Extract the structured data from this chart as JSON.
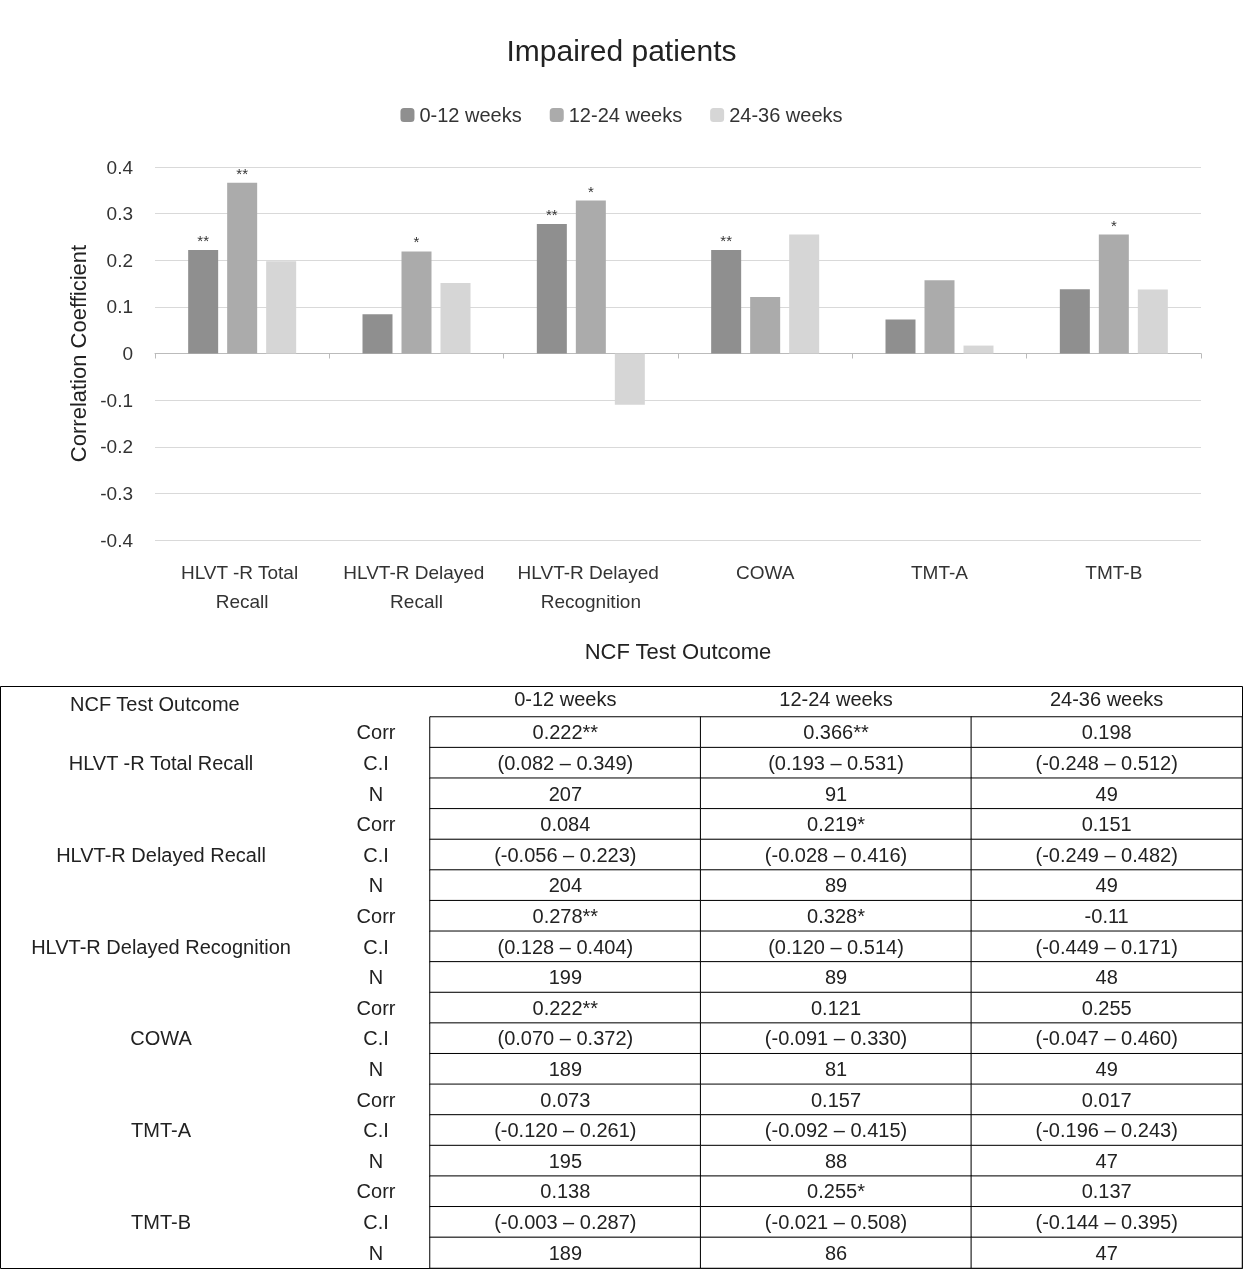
{
  "chart_data": [
    {
      "type": "bar",
      "title": "Impaired patients",
      "xlabel": "NCF Test Outcome",
      "ylabel": "Correlation Coefficient",
      "categories": [
        "HLVT -R Total Recall",
        "HLVT-R Delayed Recall",
        "HLVT-R Delayed Recognition",
        "COWA",
        "TMT-A",
        "TMT-B"
      ],
      "series": [
        {
          "name": "0-12 weeks",
          "color": "#8f8f8f",
          "values": [
            0.222,
            0.084,
            0.278,
            0.222,
            0.073,
            0.138
          ],
          "value_labels": [
            "**",
            null,
            "**",
            "**",
            null,
            null
          ]
        },
        {
          "name": "12-24 weeks",
          "color": "#ababab",
          "values": [
            0.366,
            0.219,
            0.328,
            0.121,
            0.157,
            0.255
          ],
          "value_labels": [
            "**",
            "*",
            "*",
            null,
            null,
            "*"
          ]
        },
        {
          "name": "24-36 weeks",
          "color": "#d6d6d6",
          "values": [
            0.198,
            0.151,
            -0.11,
            0.255,
            0.017,
            0.137
          ]
        }
      ],
      "ylim": [
        -0.4,
        0.4
      ],
      "yticks": [
        -0.4,
        -0.3,
        -0.2,
        -0.1,
        0,
        0.1,
        0.2,
        0.3,
        0.4
      ],
      "grid": "y",
      "legend": "top"
    },
    {
      "type": "heatmap",
      "ylabel": "NCF Test Outcome",
      "categories": [
        "0-12 weeks",
        "12-24 weeks",
        "24-36 weeks"
      ],
      "y_categories": [
        "Corr",
        "C.I",
        "N",
        "Corr",
        "C.I",
        "N",
        "Corr",
        "C.I",
        "N",
        "Corr",
        "C.I",
        "N",
        "Corr",
        "C.I",
        "N",
        "Corr",
        "C.I",
        "N"
      ],
      "y2_categories": [
        null,
        "HLVT -R Total Recall",
        null,
        null,
        "HLVT-R Delayed Recall",
        null,
        null,
        "HLVT-R Delayed Recognition",
        null,
        null,
        "COWA",
        null,
        null,
        "TMT-A",
        null,
        null,
        "TMT-B",
        null
      ],
      "cells": [
        [
          null,
          null,
          null
        ],
        [
          null,
          null,
          null
        ],
        [
          null,
          null,
          null
        ],
        [
          null,
          null,
          null
        ],
        [
          null,
          null,
          null
        ],
        [
          null,
          null,
          null
        ],
        [
          null,
          null,
          null
        ],
        [
          null,
          null,
          null
        ],
        [
          null,
          null,
          null
        ],
        [
          null,
          null,
          null
        ],
        [
          null,
          null,
          null
        ],
        [
          null,
          null,
          null
        ],
        [
          null,
          null,
          null
        ],
        [
          null,
          null,
          null
        ],
        [
          null,
          null,
          null
        ],
        [
          null,
          null,
          null
        ],
        [
          null,
          null,
          null
        ],
        [
          null,
          null,
          null
        ]
      ],
      "cell_labels": [
        [
          "0.222**",
          "0.366**",
          "0.198"
        ],
        [
          "(0.082 – 0.349)",
          "(0.193 – 0.531)",
          "(-0.248 – 0.512)"
        ],
        [
          "207",
          "91",
          "49"
        ],
        [
          "0.084",
          "0.219*",
          "0.151"
        ],
        [
          "(-0.056 – 0.223)",
          "(-0.028 – 0.416)",
          "(-0.249 – 0.482)"
        ],
        [
          "204",
          "89",
          "49"
        ],
        [
          "0.278**",
          "0.328*",
          "-0.11"
        ],
        [
          "(0.128 – 0.404)",
          "(0.120 – 0.514)",
          "(-0.449 – 0.171)"
        ],
        [
          "199",
          "89",
          "48"
        ],
        [
          "0.222**",
          "0.121",
          "0.255"
        ],
        [
          "(0.070 – 0.372)",
          "(-0.091 – 0.330)",
          "(-0.047 – 0.460)"
        ],
        [
          "189",
          "81",
          "49"
        ],
        [
          "0.073",
          "0.157",
          "0.017"
        ],
        [
          "(-0.120 – 0.261)",
          "(-0.092 – 0.415)",
          "(-0.196 – 0.243)"
        ],
        [
          "195",
          "88",
          "47"
        ],
        [
          "0.138",
          "0.255*",
          "0.137"
        ],
        [
          "(-0.003 – 0.287)",
          "(-0.021 – 0.508)",
          "(-0.144 – 0.395)"
        ],
        [
          "189",
          "86",
          "47"
        ]
      ]
    }
  ]
}
